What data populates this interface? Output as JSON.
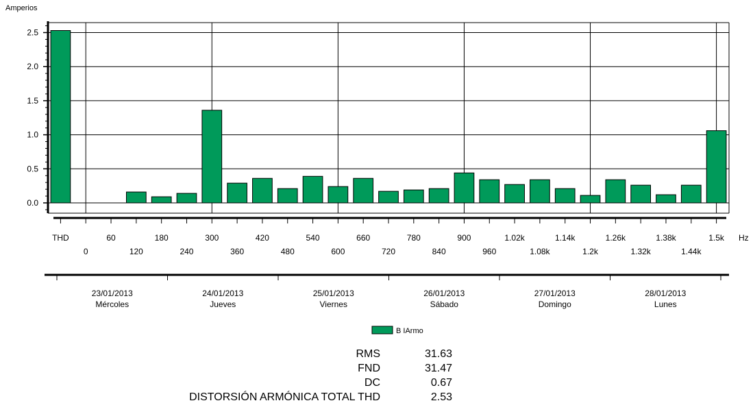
{
  "chart_data": {
    "type": "bar",
    "ylabel": "Amperios",
    "x_unit": "Hz",
    "ylim": [
      0,
      2.5
    ],
    "yticks": [
      "0.0",
      "0.5",
      "1.0",
      "1.5",
      "2.0",
      "2.5"
    ],
    "categories": [
      "THD",
      "0",
      "60",
      "120",
      "180",
      "240",
      "300",
      "360",
      "420",
      "480",
      "540",
      "600",
      "660",
      "720",
      "780",
      "840",
      "900",
      "960",
      "1.02k",
      "1.08k",
      "1.14k",
      "1.2k",
      "1.26k",
      "1.32k",
      "1.38k",
      "1.44k",
      "1.5k"
    ],
    "series": [
      {
        "name": "B IArmo",
        "color": "#009a5a",
        "values": [
          2.53,
          0,
          0,
          0.16,
          0.09,
          0.14,
          1.36,
          0.29,
          0.36,
          0.21,
          0.39,
          0.24,
          0.36,
          0.17,
          0.19,
          0.21,
          0.44,
          0.34,
          0.27,
          0.34,
          0.21,
          0.11,
          0.34,
          0.26,
          0.12,
          0.26,
          1.06
        ]
      }
    ],
    "date_axis": [
      {
        "date": "23/01/2013",
        "day": "Mércoles"
      },
      {
        "date": "24/01/2013",
        "day": "Jueves"
      },
      {
        "date": "25/01/2013",
        "day": "Viernes"
      },
      {
        "date": "26/01/2013",
        "day": "Sábado"
      },
      {
        "date": "27/01/2013",
        "day": "Domingo"
      },
      {
        "date": "28/01/2013",
        "day": "Lunes"
      }
    ],
    "grid": true,
    "legend": "bottom-center"
  },
  "stats": [
    {
      "label": "RMS",
      "value": "31.63"
    },
    {
      "label": "FND",
      "value": "31.47"
    },
    {
      "label": "DC",
      "value": "0.67"
    },
    {
      "label": "DISTORSIÓN ARMÓNICA TOTAL THD",
      "value": "2.53"
    }
  ]
}
